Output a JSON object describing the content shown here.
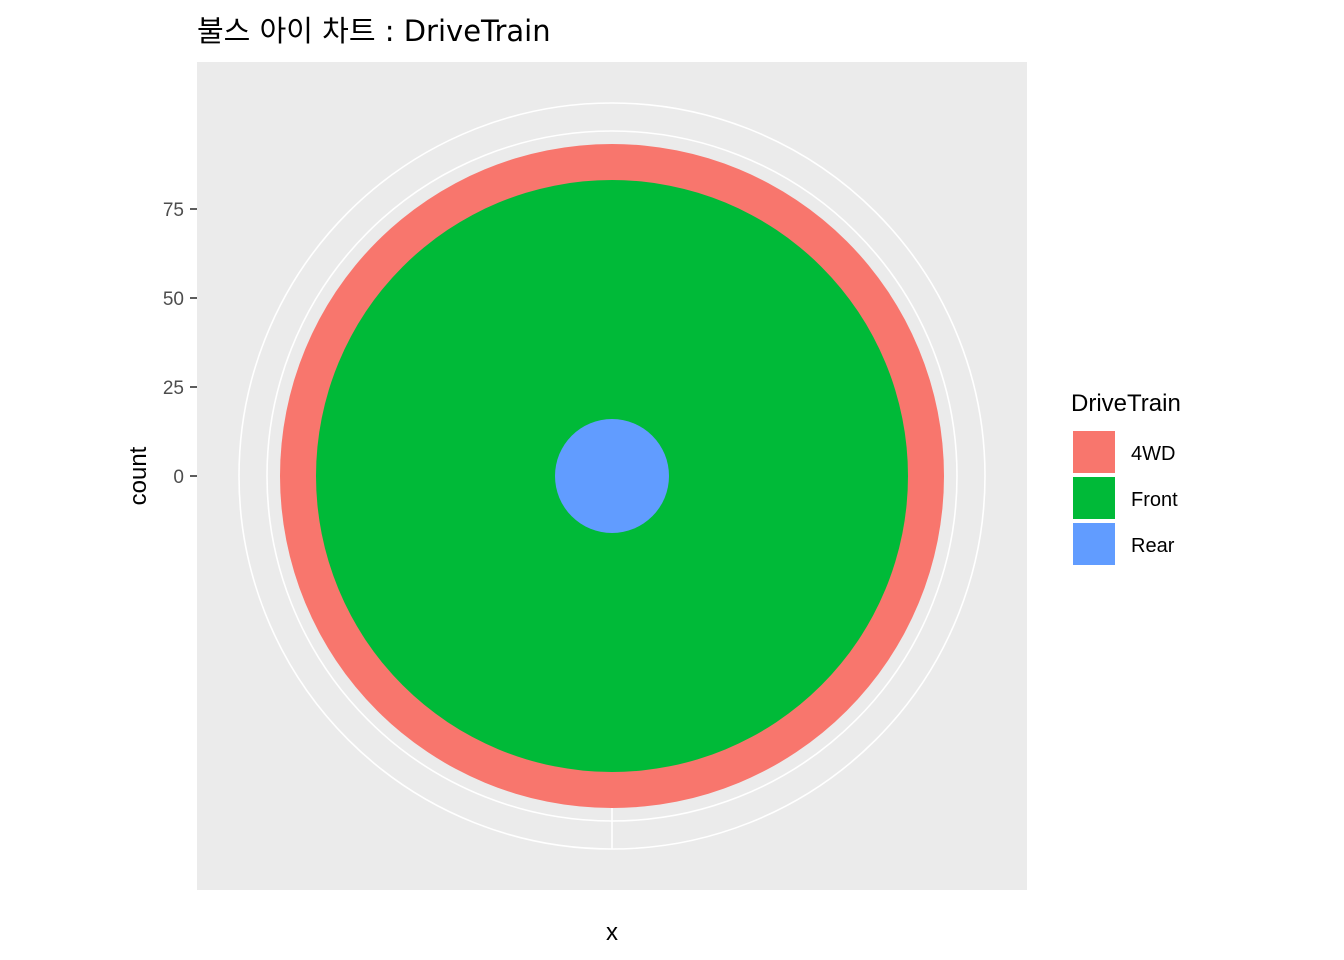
{
  "chart_data": {
    "type": "pie",
    "subtype": "bulls-eye (polar stacked bar)",
    "title": "불스 아이 차트 : DriveTrain",
    "xlabel": "x",
    "ylabel": "count",
    "y_ticks": [
      0,
      25,
      50,
      75
    ],
    "y_tick_labels": [
      "0",
      "25",
      "50",
      "75"
    ],
    "ylim": [
      -37.5,
      105
    ],
    "grid": true,
    "legend": {
      "title": "DriveTrain",
      "position": "right"
    },
    "series": [
      {
        "name": "4WD",
        "value": 10,
        "color": "#F8766D"
      },
      {
        "name": "Front",
        "value": 67,
        "color": "#00BA38"
      },
      {
        "name": "Rear",
        "value": 16,
        "color": "#619CFF"
      }
    ],
    "panel_color": "#EBEBEB",
    "grid_color": "#FFFFFF"
  }
}
